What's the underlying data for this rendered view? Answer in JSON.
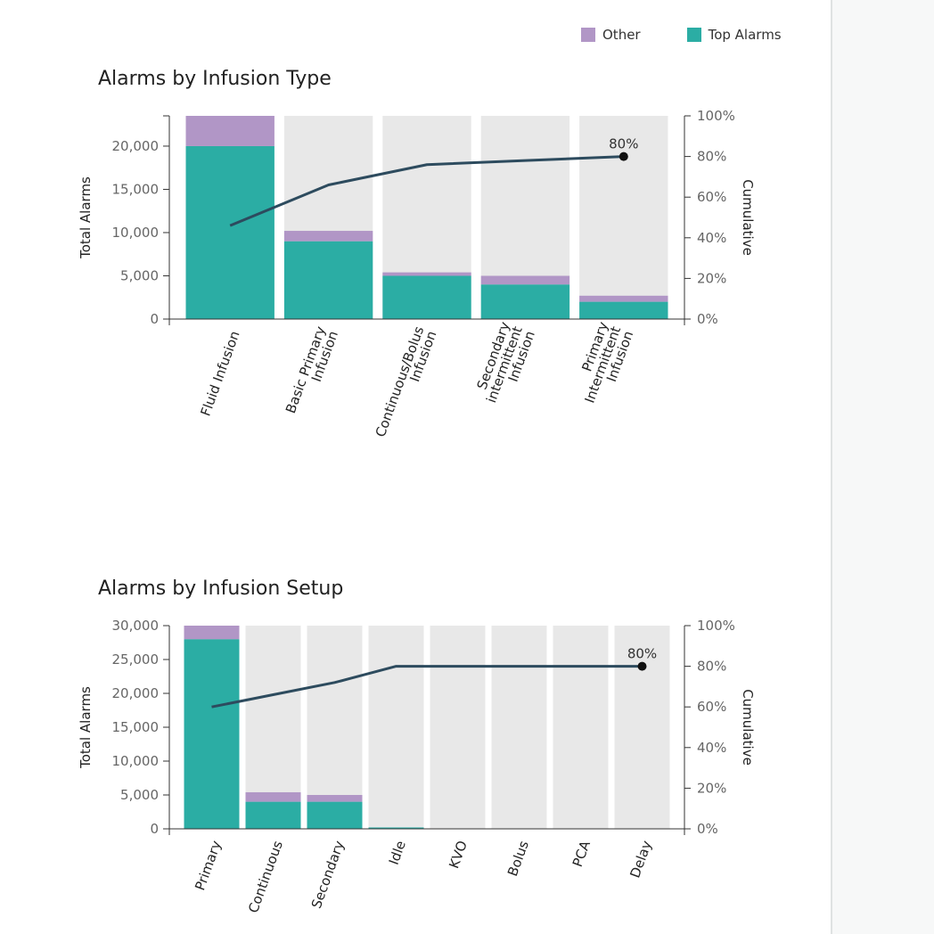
{
  "legend": {
    "items": [
      {
        "label": "Other",
        "color": "#b196c6"
      },
      {
        "label": "Top Alarms",
        "color": "#2bada4"
      }
    ]
  },
  "colors": {
    "other": "#b196c6",
    "top": "#2bada4",
    "background_bar": "#e8e8e8",
    "cumulative_line": "#2d4b5e",
    "marker": "#111111",
    "axis": "#333333"
  },
  "chart_data": [
    {
      "type": "bar",
      "title": "Alarms by Infusion Type",
      "ylabel": "Total Alarms",
      "y2label": "Cumulative",
      "ylim": [
        0,
        23500
      ],
      "y_ticks": [
        0,
        5000,
        10000,
        15000,
        20000
      ],
      "y_tick_labels": [
        "0",
        "5,000",
        "10,000",
        "15,000",
        "20,000"
      ],
      "y2lim": [
        0,
        100
      ],
      "y2_ticks": [
        0,
        20,
        40,
        60,
        80,
        100
      ],
      "y2_tick_labels": [
        "0%",
        "20%",
        "40%",
        "60%",
        "80%",
        "100%"
      ],
      "categories": [
        [
          "Fluid Infusion"
        ],
        [
          "Basic Primary",
          "Infusion"
        ],
        [
          "Continuous/Bolus",
          "Infusion"
        ],
        [
          "Secondary",
          "intermittent",
          "Infusion"
        ],
        [
          "Primary",
          "Intermittent",
          "Infusion"
        ]
      ],
      "stacked": true,
      "series": [
        {
          "name": "Top Alarms",
          "values": [
            20000,
            9000,
            5000,
            4000,
            2000
          ]
        },
        {
          "name": "Other",
          "values": [
            3500,
            1200,
            400,
            1000,
            700
          ]
        }
      ],
      "cumulative_percent": [
        46,
        66,
        76,
        78,
        80
      ],
      "annotation": {
        "index": 4,
        "label": "80%"
      },
      "grid": false,
      "legend_position": "top-right"
    },
    {
      "type": "bar",
      "title": "Alarms by Infusion Setup",
      "ylabel": "Total Alarms",
      "y2label": "Cumulative",
      "ylim": [
        0,
        30000
      ],
      "y_ticks": [
        0,
        5000,
        10000,
        15000,
        20000,
        25000,
        30000
      ],
      "y_tick_labels": [
        "0",
        "5,000",
        "10,000",
        "15,000",
        "20,000",
        "25,000",
        "30,000"
      ],
      "y2lim": [
        0,
        100
      ],
      "y2_ticks": [
        0,
        20,
        40,
        60,
        80,
        100
      ],
      "y2_tick_labels": [
        "0%",
        "20%",
        "40%",
        "60%",
        "80%",
        "100%"
      ],
      "categories": [
        [
          "Primary"
        ],
        [
          "Continuous"
        ],
        [
          "Secondary"
        ],
        [
          "Idle"
        ],
        [
          "KVO"
        ],
        [
          "Bolus"
        ],
        [
          "PCA"
        ],
        [
          "Delay"
        ]
      ],
      "stacked": true,
      "series": [
        {
          "name": "Top Alarms",
          "values": [
            28000,
            4000,
            4000,
            200,
            50,
            30,
            20,
            10
          ]
        },
        {
          "name": "Other",
          "values": [
            2200,
            1400,
            1000,
            0,
            0,
            0,
            0,
            0
          ]
        }
      ],
      "cumulative_percent": [
        60,
        66,
        72,
        80,
        80,
        80,
        80,
        80
      ],
      "annotation": {
        "index": 7,
        "label": "80%"
      },
      "grid": false,
      "legend_position": "top-right"
    }
  ]
}
